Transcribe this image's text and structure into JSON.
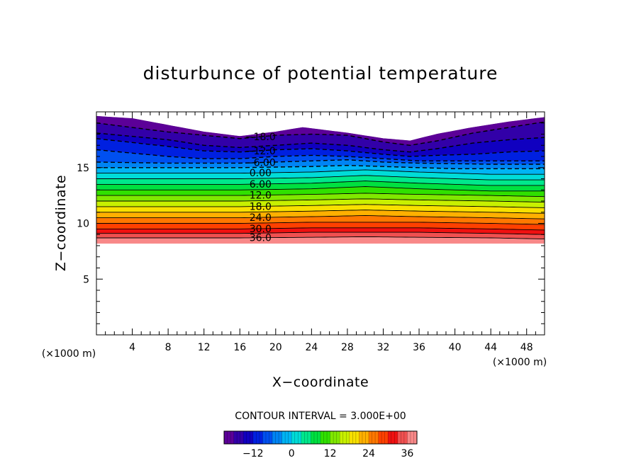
{
  "chart_data": {
    "type": "contour",
    "title": "disturbunce of potential temperature",
    "xlabel": "X−coordinate",
    "ylabel": "Z−coordinate",
    "x_unit_label": "(×1000 m)",
    "y_unit_label": "(×1000 m)",
    "xlim": [
      0,
      50
    ],
    "ylim": [
      0,
      20
    ],
    "x_ticks": [
      4,
      8,
      12,
      16,
      20,
      24,
      28,
      32,
      36,
      40,
      44,
      48
    ],
    "y_ticks": [
      5,
      10,
      15
    ],
    "contour_interval_text": "CONTOUR INTERVAL = 3.000E+00",
    "level_min": -21,
    "level_max": 39,
    "level_step": 3,
    "field_bottom_z": 8.2,
    "top_surface_z": [
      [
        0,
        19.6
      ],
      [
        4,
        19.4
      ],
      [
        8,
        18.8
      ],
      [
        12,
        18.2
      ],
      [
        16,
        17.8
      ],
      [
        20,
        18.2
      ],
      [
        23,
        18.6
      ],
      [
        28,
        18.1
      ],
      [
        32,
        17.6
      ],
      [
        35,
        17.4
      ],
      [
        38,
        18.0
      ],
      [
        42,
        18.6
      ],
      [
        46,
        19.1
      ],
      [
        50,
        19.5
      ]
    ],
    "levels": [
      {
        "value": -18,
        "label": "−18.0",
        "dashed": true,
        "z": [
          [
            0,
            19.0
          ],
          [
            8,
            18.2
          ],
          [
            12,
            17.9
          ],
          [
            16,
            17.6
          ],
          [
            20,
            17.9
          ],
          [
            24,
            18.0
          ],
          [
            28,
            17.9
          ],
          [
            32,
            17.3
          ],
          [
            35,
            17.0
          ],
          [
            38,
            17.4
          ],
          [
            42,
            18.1
          ],
          [
            46,
            18.6
          ],
          [
            50,
            19.1
          ]
        ]
      },
      {
        "value": -15,
        "label": "",
        "dashed": true,
        "z": [
          [
            0,
            18.1
          ],
          [
            8,
            17.5
          ],
          [
            12,
            17.0
          ],
          [
            16,
            16.8
          ],
          [
            20,
            17.0
          ],
          [
            24,
            17.2
          ],
          [
            28,
            17.0
          ],
          [
            32,
            16.6
          ],
          [
            35,
            16.4
          ],
          [
            38,
            16.7
          ],
          [
            42,
            17.2
          ],
          [
            46,
            17.5
          ],
          [
            50,
            17.7
          ]
        ]
      },
      {
        "value": -12,
        "label": "−12.0",
        "dashed": true,
        "z": [
          [
            0,
            17.6
          ],
          [
            8,
            16.9
          ],
          [
            12,
            16.5
          ],
          [
            16,
            16.4
          ],
          [
            20,
            16.6
          ],
          [
            24,
            16.7
          ],
          [
            28,
            16.5
          ],
          [
            32,
            16.2
          ],
          [
            35,
            16.0
          ],
          [
            38,
            16.1
          ],
          [
            42,
            16.2
          ],
          [
            46,
            16.4
          ],
          [
            50,
            16.5
          ]
        ]
      },
      {
        "value": -9,
        "label": "",
        "dashed": true,
        "z": [
          [
            0,
            16.6
          ],
          [
            8,
            16.0
          ],
          [
            12,
            15.8
          ],
          [
            16,
            15.8
          ],
          [
            20,
            16.0
          ],
          [
            24,
            16.1
          ],
          [
            28,
            16.0
          ],
          [
            32,
            15.8
          ],
          [
            36,
            15.6
          ],
          [
            40,
            15.6
          ],
          [
            44,
            15.6
          ],
          [
            50,
            15.6
          ]
        ]
      },
      {
        "value": -6,
        "label": "−6.00",
        "dashed": true,
        "z": [
          [
            0,
            15.5
          ],
          [
            8,
            15.4
          ],
          [
            16,
            15.4
          ],
          [
            24,
            15.6
          ],
          [
            28,
            15.7
          ],
          [
            32,
            15.5
          ],
          [
            36,
            15.4
          ],
          [
            44,
            15.3
          ],
          [
            50,
            15.3
          ]
        ]
      },
      {
        "value": -3,
        "label": "",
        "dashed": true,
        "z": [
          [
            0,
            15.0
          ],
          [
            8,
            15.0
          ],
          [
            16,
            15.0
          ],
          [
            24,
            15.1
          ],
          [
            28,
            15.2
          ],
          [
            32,
            15.1
          ],
          [
            40,
            14.9
          ],
          [
            50,
            14.9
          ]
        ]
      },
      {
        "value": 0,
        "label": "0.00",
        "dashed": false,
        "z": [
          [
            0,
            14.5
          ],
          [
            8,
            14.5
          ],
          [
            16,
            14.5
          ],
          [
            24,
            14.6
          ],
          [
            30,
            14.8
          ],
          [
            36,
            14.6
          ],
          [
            44,
            14.4
          ],
          [
            50,
            14.4
          ]
        ]
      },
      {
        "value": 3,
        "label": "",
        "dashed": false,
        "z": [
          [
            0,
            14.0
          ],
          [
            8,
            14.0
          ],
          [
            16,
            14.0
          ],
          [
            24,
            14.1
          ],
          [
            30,
            14.3
          ],
          [
            36,
            14.1
          ],
          [
            44,
            13.9
          ],
          [
            50,
            13.9
          ]
        ]
      },
      {
        "value": 6,
        "label": "6.00",
        "dashed": false,
        "z": [
          [
            0,
            13.5
          ],
          [
            8,
            13.5
          ],
          [
            16,
            13.5
          ],
          [
            24,
            13.6
          ],
          [
            30,
            13.8
          ],
          [
            36,
            13.6
          ],
          [
            44,
            13.4
          ],
          [
            50,
            13.4
          ]
        ]
      },
      {
        "value": 9,
        "label": "",
        "dashed": false,
        "z": [
          [
            0,
            13.0
          ],
          [
            8,
            13.0
          ],
          [
            16,
            13.0
          ],
          [
            24,
            13.1
          ],
          [
            30,
            13.3
          ],
          [
            36,
            13.1
          ],
          [
            44,
            12.9
          ],
          [
            50,
            12.9
          ]
        ]
      },
      {
        "value": 12,
        "label": "12.0",
        "dashed": false,
        "z": [
          [
            0,
            12.5
          ],
          [
            8,
            12.5
          ],
          [
            16,
            12.5
          ],
          [
            24,
            12.6
          ],
          [
            30,
            12.7
          ],
          [
            36,
            12.6
          ],
          [
            44,
            12.5
          ],
          [
            50,
            12.4
          ]
        ]
      },
      {
        "value": 15,
        "label": "",
        "dashed": false,
        "z": [
          [
            0,
            12.0
          ],
          [
            8,
            12.0
          ],
          [
            16,
            12.0
          ],
          [
            24,
            12.1
          ],
          [
            30,
            12.2
          ],
          [
            36,
            12.1
          ],
          [
            44,
            12.0
          ],
          [
            50,
            11.9
          ]
        ]
      },
      {
        "value": 18,
        "label": "18.0",
        "dashed": false,
        "z": [
          [
            0,
            11.5
          ],
          [
            8,
            11.5
          ],
          [
            16,
            11.5
          ],
          [
            24,
            11.6
          ],
          [
            30,
            11.7
          ],
          [
            36,
            11.6
          ],
          [
            44,
            11.5
          ],
          [
            50,
            11.4
          ]
        ]
      },
      {
        "value": 21,
        "label": "",
        "dashed": false,
        "z": [
          [
            0,
            11.0
          ],
          [
            8,
            11.0
          ],
          [
            16,
            11.0
          ],
          [
            24,
            11.1
          ],
          [
            30,
            11.2
          ],
          [
            36,
            11.1
          ],
          [
            44,
            11.0
          ],
          [
            50,
            10.9
          ]
        ]
      },
      {
        "value": 24,
        "label": "24.0",
        "dashed": false,
        "z": [
          [
            0,
            10.5
          ],
          [
            8,
            10.5
          ],
          [
            16,
            10.5
          ],
          [
            24,
            10.6
          ],
          [
            30,
            10.7
          ],
          [
            36,
            10.6
          ],
          [
            44,
            10.5
          ],
          [
            50,
            10.4
          ]
        ]
      },
      {
        "value": 27,
        "label": "",
        "dashed": false,
        "z": [
          [
            0,
            10.0
          ],
          [
            8,
            10.0
          ],
          [
            16,
            10.0
          ],
          [
            24,
            10.1
          ],
          [
            30,
            10.1
          ],
          [
            36,
            10.1
          ],
          [
            44,
            10.0
          ],
          [
            50,
            9.9
          ]
        ]
      },
      {
        "value": 30,
        "label": "30.0",
        "dashed": false,
        "z": [
          [
            0,
            9.5
          ],
          [
            8,
            9.5
          ],
          [
            16,
            9.5
          ],
          [
            24,
            9.6
          ],
          [
            30,
            9.6
          ],
          [
            36,
            9.6
          ],
          [
            44,
            9.5
          ],
          [
            50,
            9.4
          ]
        ]
      },
      {
        "value": 33,
        "label": "",
        "dashed": false,
        "z": [
          [
            0,
            9.1
          ],
          [
            8,
            9.1
          ],
          [
            16,
            9.1
          ],
          [
            24,
            9.2
          ],
          [
            30,
            9.2
          ],
          [
            36,
            9.2
          ],
          [
            44,
            9.1
          ],
          [
            50,
            9.0
          ]
        ]
      },
      {
        "value": 36,
        "label": "36.0",
        "dashed": false,
        "z": [
          [
            0,
            8.7
          ],
          [
            8,
            8.7
          ],
          [
            16,
            8.7
          ],
          [
            24,
            8.75
          ],
          [
            30,
            8.8
          ],
          [
            36,
            8.75
          ],
          [
            44,
            8.7
          ],
          [
            50,
            8.6
          ]
        ]
      }
    ],
    "label_x": 18.3,
    "colorbar": {
      "tick_labels": [
        "−12",
        "0",
        "12",
        "24",
        "36"
      ],
      "tick_values": [
        -12,
        0,
        12,
        24,
        36
      ],
      "colors": [
        "#5c0098",
        "#3200a8",
        "#1000c0",
        "#0020e0",
        "#0050f0",
        "#0084f4",
        "#00b4f4",
        "#00dcd8",
        "#00e88c",
        "#00e040",
        "#30e000",
        "#80e800",
        "#c8f000",
        "#f8e000",
        "#ffb000",
        "#ff7800",
        "#ff4000",
        "#f01010",
        "#f05050",
        "#f88888"
      ]
    }
  }
}
